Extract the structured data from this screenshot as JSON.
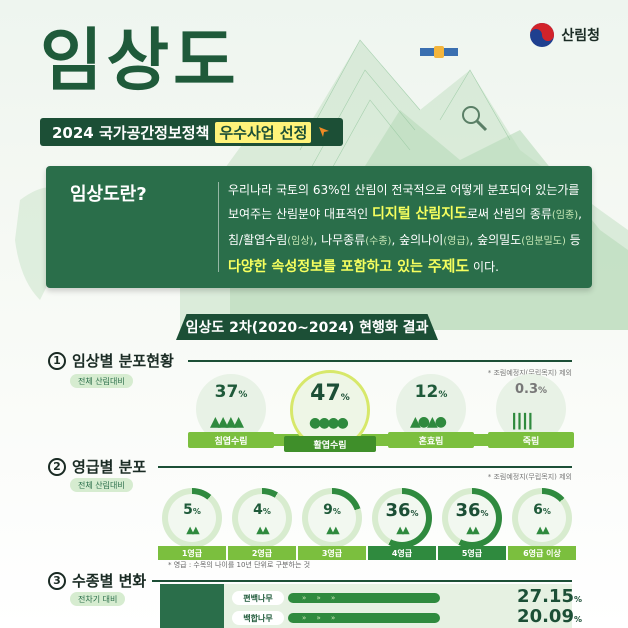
{
  "logo": {
    "org_name": "산림청"
  },
  "title": "임상도",
  "subtitle": {
    "prefix": "2024 국가공간정보정책",
    "highlight": "우수사업 선정"
  },
  "definition": {
    "heading": "임상도란?",
    "line1": "우리나라 국토의 63%인 산림이 전국적으로 어떻게 분포되어 있는가를",
    "line2_a": "보여주는 산림분야 대표적인 ",
    "line2_hl": "디지털 산림지도",
    "line2_b": "로써 산림의 종류",
    "line2_sm": "(임종)",
    "line2_c": ",",
    "line3_a": "침/활엽수림",
    "line3_sm1": "(임상)",
    "line3_b": ", 나무종류",
    "line3_sm2": "(수종)",
    "line3_c": ", 숲의나이",
    "line3_sm3": "(영급)",
    "line3_d": ", 숲의밀도",
    "line3_sm4": "(임분밀도)",
    "line3_e": " 등",
    "line4_hl1": "다양한 속성정보를 포함하고 있는 ",
    "line4_hl2": "주제도",
    "line4_end": " 이다."
  },
  "results_banner": "임상도 2차(2020~2024) 현행화 결과",
  "section1": {
    "num": "1",
    "title": "임상별 분포현황",
    "tag": "전체 산림대비",
    "note": "* 조림예정지(무립목지) 제외",
    "items": [
      {
        "value": "37",
        "unit": "%",
        "label": "침엽수림"
      },
      {
        "value": "47",
        "unit": "%",
        "label": "활엽수림"
      },
      {
        "value": "12",
        "unit": "%",
        "label": "혼효림"
      },
      {
        "value": "0.3",
        "unit": "%",
        "label": "죽림"
      }
    ]
  },
  "section2": {
    "num": "2",
    "title": "영급별 분포",
    "tag": "전체 산림대비",
    "note": "* 조림예정지(무립목지) 제외",
    "footnote": "* 영급 : 수목의 나이를 10년 단위로 구분하는 것",
    "items": [
      {
        "value": "5",
        "unit": "%",
        "label": "1영급",
        "fraction": 0.05
      },
      {
        "value": "4",
        "unit": "%",
        "label": "2영급",
        "fraction": 0.04
      },
      {
        "value": "9",
        "unit": "%",
        "label": "3영급",
        "fraction": 0.09
      },
      {
        "value": "36",
        "unit": "%",
        "label": "4영급",
        "fraction": 0.36
      },
      {
        "value": "36",
        "unit": "%",
        "label": "5영급",
        "fraction": 0.36
      },
      {
        "value": "6",
        "unit": "%",
        "label": "6영급 이상",
        "fraction": 0.06
      }
    ]
  },
  "section3": {
    "num": "3",
    "title": "수종별 변화",
    "tag": "전차기 대비",
    "rows": [
      {
        "name": "편백나무",
        "arrows": "»  »  »",
        "value": "27.15",
        "unit": "%"
      },
      {
        "name": "백합나무",
        "arrows": "»  »  »",
        "value": "20.09",
        "unit": "%"
      }
    ]
  },
  "colors": {
    "dark_green": "#1c4f36",
    "mid_green": "#2a6e4a",
    "light_green": "#7bbf3e",
    "highlight_yellow": "#f6ff5e"
  }
}
